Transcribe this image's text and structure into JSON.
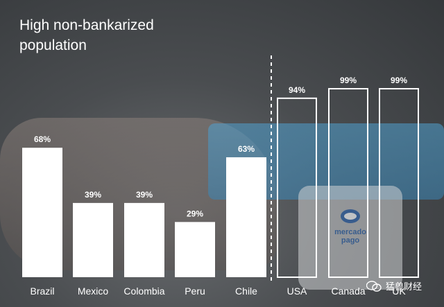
{
  "title_lines": [
    "High non-bankarized",
    "population"
  ],
  "watermark": "猛兽财经",
  "colors": {
    "bar_fill": "#ffffff",
    "text": "#ffffff",
    "divider": "#ffffff"
  },
  "chart_data": {
    "type": "bar",
    "title": "High non-bankarized population",
    "xlabel": "",
    "ylabel": "",
    "ylim": [
      0,
      100
    ],
    "categories": [
      "Brazil",
      "Mexico",
      "Colombia",
      "Peru",
      "Chile",
      "USA",
      "Canada",
      "UK"
    ],
    "values": [
      68,
      39,
      39,
      29,
      63,
      94,
      99,
      99
    ],
    "value_labels": [
      "68%",
      "39%",
      "39%",
      "29%",
      "63%",
      "94%",
      "99%",
      "99%"
    ],
    "bar_style": [
      "filled",
      "filled",
      "filled",
      "filled",
      "filled",
      "outline",
      "outline",
      "outline"
    ],
    "grid": false,
    "divider_between": [
      "Chile",
      "USA"
    ]
  }
}
